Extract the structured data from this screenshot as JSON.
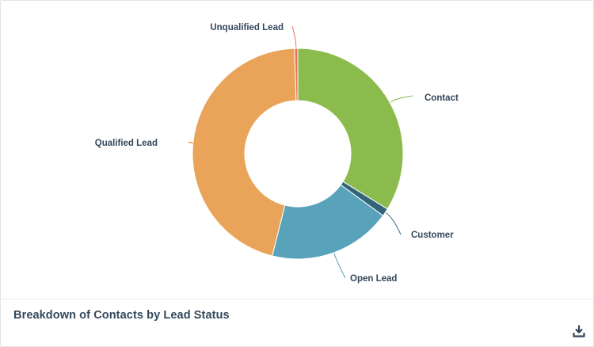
{
  "chart_data": {
    "type": "pie",
    "style": "donut",
    "title": "Breakdown of Contacts by Lead Status",
    "categories": [
      "Contact",
      "Customer",
      "Open Lead",
      "Qualified Lead",
      "Unqualified Lead"
    ],
    "values": [
      33.8,
      1.2,
      18.9,
      45.6,
      0.5
    ],
    "colors": [
      "#8cbb4d",
      "#34647a",
      "#58a2ba",
      "#e9a45a",
      "#e8735a"
    ],
    "legend": "none"
  },
  "footer": {
    "title": "Breakdown of Contacts by Lead Status",
    "download_icon": "download-icon"
  }
}
